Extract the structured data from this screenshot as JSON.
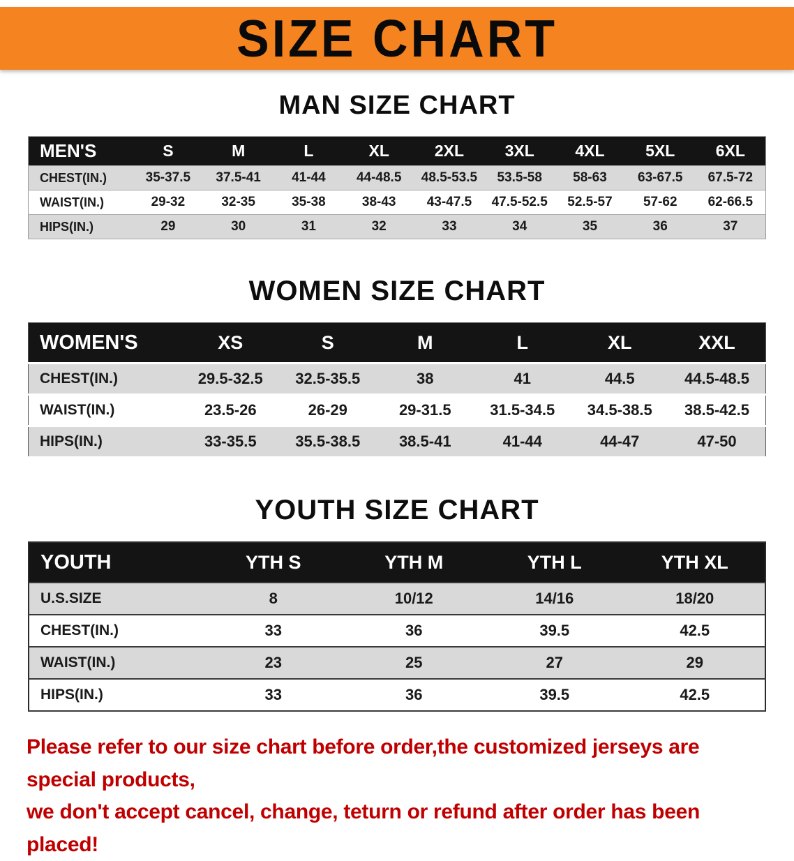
{
  "banner": {
    "title": "SIZE CHART",
    "bg_color": "#f5831f"
  },
  "sections": [
    {
      "heading": "MAN SIZE CHART",
      "table": {
        "header": [
          "MEN'S",
          "S",
          "M",
          "L",
          "XL",
          "2XL",
          "3XL",
          "4XL",
          "5XL",
          "6XL"
        ],
        "rows": [
          [
            "CHEST(IN.)",
            "35-37.5",
            "37.5-41",
            "41-44",
            "44-48.5",
            "48.5-53.5",
            "53.5-58",
            "58-63",
            "63-67.5",
            "67.5-72"
          ],
          [
            "WAIST(IN.)",
            "29-32",
            "32-35",
            "35-38",
            "38-43",
            "43-47.5",
            "47.5-52.5",
            "52.5-57",
            "57-62",
            "62-66.5"
          ],
          [
            "HIPS(IN.)",
            "29",
            "30",
            "31",
            "32",
            "33",
            "34",
            "35",
            "36",
            "37"
          ]
        ]
      }
    },
    {
      "heading": "WOMEN SIZE CHART",
      "table": {
        "header": [
          "WOMEN'S",
          "XS",
          "S",
          "M",
          "L",
          "XL",
          "XXL"
        ],
        "rows": [
          [
            "CHEST(IN.)",
            "29.5-32.5",
            "32.5-35.5",
            "38",
            "41",
            "44.5",
            "44.5-48.5"
          ],
          [
            "WAIST(IN.)",
            "23.5-26",
            "26-29",
            "29-31.5",
            "31.5-34.5",
            "34.5-38.5",
            "38.5-42.5"
          ],
          [
            "HIPS(IN.)",
            "33-35.5",
            "35.5-38.5",
            "38.5-41",
            "41-44",
            "44-47",
            "47-50"
          ]
        ]
      }
    },
    {
      "heading": "YOUTH SIZE CHART",
      "table": {
        "header": [
          "YOUTH",
          "YTH S",
          "YTH M",
          "YTH L",
          "YTH XL"
        ],
        "rows": [
          [
            "U.S.SIZE",
            "8",
            "10/12",
            "14/16",
            "18/20"
          ],
          [
            "CHEST(IN.)",
            "33",
            "36",
            "39.5",
            "42.5"
          ],
          [
            "WAIST(IN.)",
            "23",
            "25",
            "27",
            "29"
          ],
          [
            "HIPS(IN.)",
            "33",
            "36",
            "39.5",
            "42.5"
          ]
        ]
      }
    }
  ],
  "disclaimer": {
    "color": "#c00000",
    "line1": "Please refer to our size chart before order,the customized jerseys are special products,",
    "line2": "we don't accept cancel, change, teturn or refund after order has been placed!"
  }
}
